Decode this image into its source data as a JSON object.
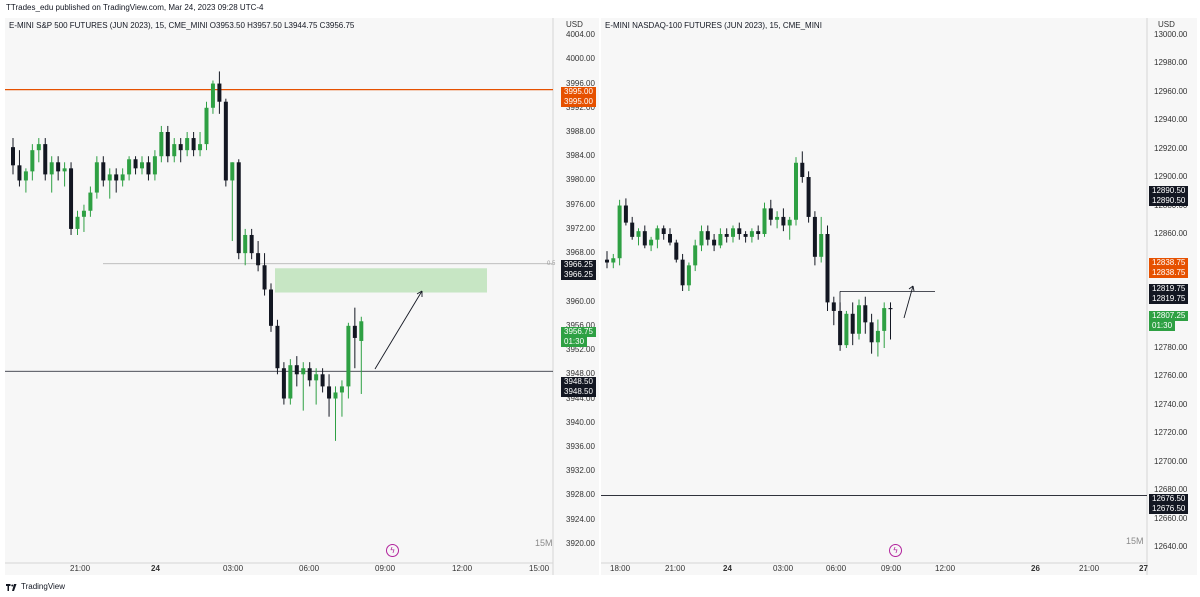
{
  "header": {
    "published": "TTrades_edu published on TradingView.com, Mar 24, 2023 09:28 UTC-4"
  },
  "footer": {
    "brand": "TradingView"
  },
  "colors": {
    "up": "#2ea043",
    "down": "#131722",
    "orange": "#e65100",
    "zone": "#c7e6c4",
    "price_green": "#2ea043",
    "bolt": "#b2249d"
  },
  "left_pane": {
    "symbol_line": "E-MINI S&P 500 FUTURES (JUN 2023), 15, CME_MINI  O3953.50  H3957.50  L3944.75  C3956.75",
    "currency": "USD",
    "price_axis": [
      "4004.00",
      "4000.00",
      "3996.00",
      "3992.00",
      "3988.00",
      "3984.00",
      "3980.00",
      "3976.00",
      "3972.00",
      "3968.00",
      "3964.00",
      "3960.00",
      "3956.00",
      "3952.00",
      "3948.00",
      "3944.00",
      "3940.00",
      "3936.00",
      "3932.00",
      "3928.00",
      "3924.00",
      "3920.00"
    ],
    "time_axis": [
      "21:00",
      "24",
      "03:00",
      "06:00",
      "09:00",
      "12:00",
      "15:00"
    ],
    "tags": {
      "orange_a": "3995.00",
      "orange_b": "3995.00",
      "black1_a": "3966.25",
      "black1_b": "3966.25",
      "green_price": "3956.75",
      "green_timer": "01:30",
      "black2_a": "3948.50",
      "black2_b": "3948.50"
    },
    "fib_label": "0.5",
    "timeframe": "15M",
    "levels": {
      "orange": 3995.0,
      "midline": 3966.25,
      "horizontal": 3948.5,
      "zone_top": 3965.5,
      "zone_bottom": 3961.5
    },
    "candles": [
      [
        3985.5,
        3987,
        3981,
        3982.5
      ],
      [
        3982.5,
        3985,
        3979,
        3980
      ],
      [
        3980,
        3982,
        3978,
        3981.5
      ],
      [
        3981.5,
        3986,
        3980,
        3985
      ],
      [
        3985,
        3987,
        3983,
        3986
      ],
      [
        3986,
        3987,
        3980,
        3981
      ],
      [
        3981,
        3984,
        3978,
        3983
      ],
      [
        3983,
        3984,
        3980,
        3981.5
      ],
      [
        3981.5,
        3983,
        3979,
        3982
      ],
      [
        3982,
        3983,
        3971,
        3972
      ],
      [
        3972,
        3975,
        3971,
        3974
      ],
      [
        3974,
        3976,
        3971.5,
        3975
      ],
      [
        3975,
        3979,
        3974,
        3978
      ],
      [
        3978,
        3984,
        3977,
        3983
      ],
      [
        3983,
        3984,
        3979,
        3980
      ],
      [
        3980,
        3982,
        3977,
        3981
      ],
      [
        3981,
        3982,
        3978,
        3980
      ],
      [
        3980,
        3982,
        3979,
        3981
      ],
      [
        3981,
        3984,
        3980,
        3983.5
      ],
      [
        3983.5,
        3984,
        3981,
        3982
      ],
      [
        3982,
        3984,
        3981,
        3983
      ],
      [
        3983,
        3984,
        3980,
        3981
      ],
      [
        3981,
        3985,
        3980,
        3984
      ],
      [
        3984,
        3989,
        3983,
        3988
      ],
      [
        3988,
        3989,
        3983,
        3984
      ],
      [
        3984,
        3987,
        3983,
        3986
      ],
      [
        3986,
        3987,
        3983,
        3985
      ],
      [
        3985,
        3988,
        3984,
        3987
      ],
      [
        3987,
        3988,
        3984,
        3985
      ],
      [
        3985,
        3988,
        3984,
        3986
      ],
      [
        3986,
        3993,
        3985,
        3992
      ],
      [
        3992,
        3996.5,
        3991,
        3996
      ],
      [
        3996,
        3998,
        3991,
        3993
      ],
      [
        3993,
        3993.5,
        3979,
        3980
      ],
      [
        3980,
        3983,
        3970,
        3983
      ],
      [
        3983,
        3983.5,
        3967,
        3968
      ],
      [
        3968,
        3972,
        3966,
        3971
      ],
      [
        3971,
        3972,
        3967,
        3968
      ],
      [
        3968,
        3970,
        3965,
        3966
      ],
      [
        3966,
        3968,
        3961,
        3962
      ],
      [
        3962,
        3963,
        3955,
        3956
      ],
      [
        3956,
        3957,
        3948,
        3949
      ],
      [
        3949,
        3950,
        3943,
        3944
      ],
      [
        3944,
        3950.5,
        3943,
        3949.5
      ],
      [
        3949.5,
        3951,
        3946,
        3948
      ],
      [
        3948,
        3950,
        3942,
        3949
      ],
      [
        3949,
        3950,
        3946,
        3947
      ],
      [
        3947,
        3949,
        3943,
        3948
      ],
      [
        3948,
        3949,
        3945,
        3946
      ],
      [
        3946,
        3948,
        3941,
        3944
      ],
      [
        3944,
        3946,
        3937,
        3945
      ],
      [
        3945,
        3947,
        3941,
        3946
      ],
      [
        3946,
        3956.5,
        3944,
        3956
      ],
      [
        3956,
        3959,
        3949,
        3954
      ],
      [
        3953.5,
        3957.5,
        3944.75,
        3956.75
      ]
    ]
  },
  "right_pane": {
    "symbol_line": "E-MINI NASDAQ-100 FUTURES (JUN 2023), 15, CME_MINI",
    "currency": "USD",
    "price_axis": [
      "13000.00",
      "12980.00",
      "12960.00",
      "12940.00",
      "12920.00",
      "12900.00",
      "12880.00",
      "12860.00",
      "12840.00",
      "12820.00",
      "12800.00",
      "12780.00",
      "12760.00",
      "12740.00",
      "12720.00",
      "12700.00",
      "12680.00",
      "12660.00",
      "12640.00"
    ],
    "time_axis": [
      "18:00",
      "21:00",
      "24",
      "03:00",
      "06:00",
      "09:00",
      "12:00",
      "26",
      "21:00",
      "27"
    ],
    "tags": {
      "black1_a": "12890.50",
      "black1_b": "12890.50",
      "orange_a": "12838.75",
      "orange_b": "12838.75",
      "black2_a": "12819.75",
      "black2_b": "12819.75",
      "green_price": "12807.25",
      "green_timer": "01:30",
      "black3_a": "12676.50",
      "black3_b": "12676.50"
    },
    "timeframe": "15M",
    "levels": {
      "horizontal": 12676.5,
      "box_level": 12819.75
    },
    "candles": [
      [
        12842,
        12848,
        12836,
        12840
      ],
      [
        12840,
        12846,
        12836,
        12843
      ],
      [
        12843,
        12884,
        12838,
        12880
      ],
      [
        12880,
        12885,
        12866,
        12868
      ],
      [
        12868,
        12872,
        12856,
        12858
      ],
      [
        12858,
        12864,
        12852,
        12862
      ],
      [
        12862,
        12866,
        12850,
        12852
      ],
      [
        12852,
        12858,
        12848,
        12856
      ],
      [
        12856,
        12866,
        12850,
        12864
      ],
      [
        12864,
        12866,
        12856,
        12860
      ],
      [
        12860,
        12864,
        12852,
        12854
      ],
      [
        12854,
        12856,
        12840,
        12842
      ],
      [
        12842,
        12846,
        12820,
        12824
      ],
      [
        12824,
        12840,
        12820,
        12838
      ],
      [
        12838,
        12856,
        12834,
        12852
      ],
      [
        12852,
        12866,
        12848,
        12862
      ],
      [
        12862,
        12866,
        12852,
        12856
      ],
      [
        12856,
        12860,
        12848,
        12852
      ],
      [
        12852,
        12864,
        12850,
        12860
      ],
      [
        12860,
        12864,
        12854,
        12858
      ],
      [
        12858,
        12866,
        12854,
        12864
      ],
      [
        12864,
        12868,
        12856,
        12860
      ],
      [
        12860,
        12862,
        12854,
        12858
      ],
      [
        12858,
        12864,
        12854,
        12862
      ],
      [
        12862,
        12866,
        12856,
        12860
      ],
      [
        12860,
        12882,
        12858,
        12878
      ],
      [
        12878,
        12884,
        12866,
        12870
      ],
      [
        12870,
        12876,
        12864,
        12872
      ],
      [
        12872,
        12878,
        12862,
        12866
      ],
      [
        12866,
        12872,
        12856,
        12870
      ],
      [
        12870,
        12914,
        12866,
        12910
      ],
      [
        12910,
        12918,
        12896,
        12900
      ],
      [
        12900,
        12904,
        12868,
        12872
      ],
      [
        12872,
        12876,
        12838,
        12844
      ],
      [
        12844,
        12872,
        12840,
        12860
      ],
      [
        12860,
        12866,
        12806,
        12812
      ],
      [
        12812,
        12816,
        12796,
        12806
      ],
      [
        12806,
        12812,
        12778,
        12782
      ],
      [
        12782,
        12806,
        12780,
        12804
      ],
      [
        12804,
        12812,
        12782,
        12790
      ],
      [
        12790,
        12814,
        12786,
        12810
      ],
      [
        12810,
        12816,
        12790,
        12798
      ],
      [
        12798,
        12804,
        12776,
        12784
      ],
      [
        12784,
        12800,
        12774,
        12792
      ],
      [
        12792,
        12812,
        12780,
        12808
      ],
      [
        12808,
        12812,
        12786,
        12807.25
      ]
    ]
  }
}
